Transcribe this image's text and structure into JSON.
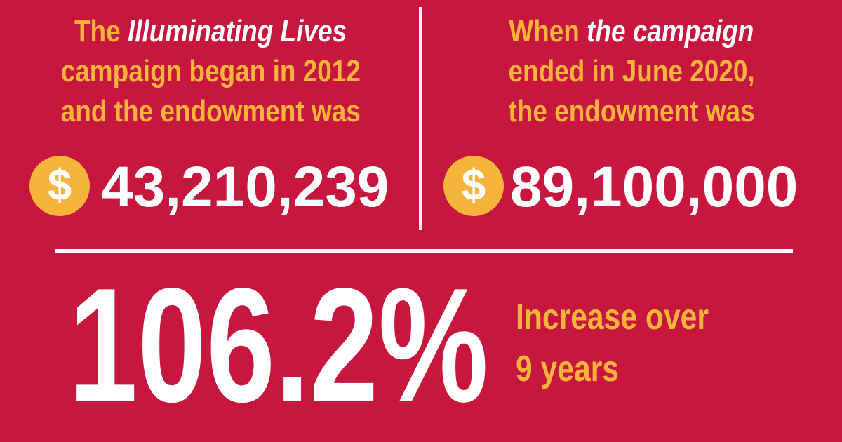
{
  "left": {
    "heading_lines": [
      {
        "parts": [
          {
            "text": "The "
          },
          {
            "text": "Illuminating Lives",
            "style": "italic"
          }
        ]
      },
      {
        "parts": [
          {
            "text": "campaign began in 2012"
          }
        ]
      },
      {
        "parts": [
          {
            "text": "and the endowment was"
          }
        ]
      }
    ],
    "icon": "$",
    "amount": "43,210,239"
  },
  "right": {
    "heading_lines": [
      {
        "parts": [
          {
            "text": "When "
          },
          {
            "text": "the campaign",
            "style": "italic"
          }
        ]
      },
      {
        "parts": [
          {
            "text": "ended in June 2020,"
          }
        ]
      },
      {
        "parts": [
          {
            "text": "the endowment was"
          }
        ]
      }
    ],
    "icon": "$",
    "amount": "89,100,000"
  },
  "summary": {
    "percent": "106.2%",
    "caption_lines": [
      "Increase over",
      "9 years"
    ]
  }
}
